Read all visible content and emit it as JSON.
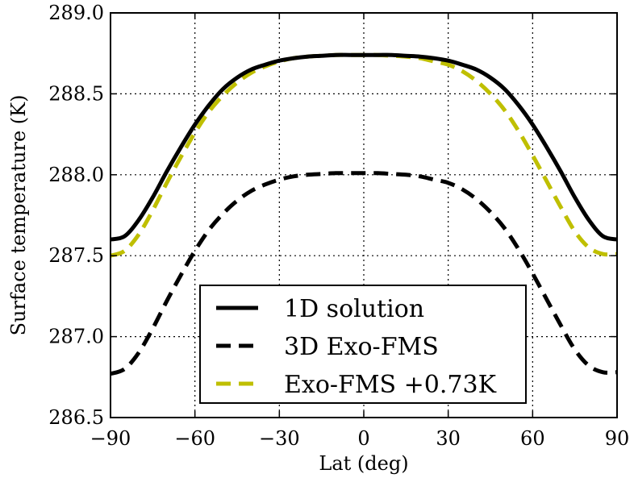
{
  "chart_data": {
    "type": "line",
    "title": "",
    "xlabel": "Lat (deg)",
    "ylabel": "Surface temperature (K)",
    "xlim": [
      -90,
      90
    ],
    "ylim": [
      286.5,
      289.0
    ],
    "xticks": [
      -90,
      -60,
      -30,
      0,
      30,
      60,
      90
    ],
    "xtick_labels": [
      "−90",
      "−60",
      "−30",
      "0",
      "30",
      "60",
      "90"
    ],
    "yticks": [
      286.5,
      287.0,
      287.5,
      288.0,
      288.5,
      289.0
    ],
    "ytick_labels": [
      "286.5",
      "287.0",
      "287.5",
      "288.0",
      "288.5",
      "289.0"
    ],
    "grid": true,
    "legend_position": "lower-center",
    "x": [
      -90,
      -85,
      -80,
      -75,
      -70,
      -65,
      -60,
      -55,
      -50,
      -45,
      -40,
      -35,
      -30,
      -25,
      -20,
      -15,
      -10,
      -5,
      0,
      5,
      10,
      15,
      20,
      25,
      30,
      35,
      40,
      45,
      50,
      55,
      60,
      65,
      70,
      75,
      80,
      85,
      90
    ],
    "series": [
      {
        "name": "1D solution",
        "style": "solid",
        "color": "#000000",
        "values": [
          287.6,
          287.62,
          287.72,
          287.86,
          288.02,
          288.17,
          288.31,
          288.43,
          288.53,
          288.6,
          288.65,
          288.68,
          288.705,
          288.72,
          288.73,
          288.735,
          288.74,
          288.74,
          288.74,
          288.74,
          288.74,
          288.735,
          288.73,
          288.72,
          288.705,
          288.68,
          288.65,
          288.6,
          288.53,
          288.43,
          288.31,
          288.17,
          288.02,
          287.86,
          287.72,
          287.62,
          287.6
        ]
      },
      {
        "name": "3D Exo-FMS",
        "style": "dashed",
        "color": "#000000",
        "values": [
          286.77,
          286.8,
          286.9,
          287.05,
          287.22,
          287.38,
          287.53,
          287.66,
          287.76,
          287.84,
          287.9,
          287.94,
          287.97,
          287.99,
          288.0,
          288.005,
          288.01,
          288.01,
          288.01,
          288.01,
          288.005,
          288.0,
          287.99,
          287.97,
          287.95,
          287.91,
          287.85,
          287.77,
          287.67,
          287.54,
          287.39,
          287.23,
          287.07,
          286.92,
          286.82,
          286.78,
          286.78
        ]
      },
      {
        "name": "Exo-FMS +0.73K",
        "style": "dashed",
        "color": "#bfbf00",
        "values": [
          287.5,
          287.53,
          287.63,
          287.78,
          287.95,
          288.11,
          288.26,
          288.39,
          288.49,
          288.57,
          288.63,
          288.67,
          288.7,
          288.72,
          288.73,
          288.735,
          288.74,
          288.74,
          288.74,
          288.74,
          288.735,
          288.73,
          288.72,
          288.7,
          288.68,
          288.64,
          288.58,
          288.5,
          288.4,
          288.27,
          288.12,
          287.96,
          287.8,
          287.65,
          287.55,
          287.51,
          287.51
        ]
      }
    ]
  }
}
